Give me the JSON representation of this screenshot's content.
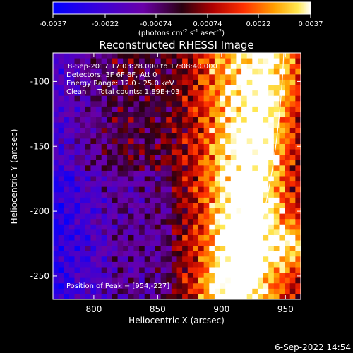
{
  "chart_data": {
    "type": "heatmap",
    "title": "Reconstructed RHESSI Image",
    "xlabel": "Heliocentric X (arcsec)",
    "ylabel": "Heliocentric Y (arcsec)",
    "x_range": [
      768,
      962
    ],
    "y_range": [
      -268,
      -78
    ],
    "x_ticks": [
      800,
      850,
      900,
      950
    ],
    "y_ticks": [
      -100,
      -150,
      -200,
      -250
    ],
    "colorbar": {
      "ticks": [
        "-0.0037",
        "-0.0022",
        "-0.00074",
        "0.00074",
        "0.0022",
        "0.0037"
      ],
      "range": [
        -0.0037,
        0.0037
      ],
      "units_label": "(photons cm",
      "units_exp1": "-2",
      "units_mid1": " s",
      "units_exp2": "-1",
      "units_mid2": " asec",
      "units_exp3": "-2",
      "units_end": ")"
    },
    "annotations": [
      "8-Sep-2017 17:03:28.000 to 17:08:40.000",
      "Detectors: 3F 6F 8F, Att 0",
      "Energy Range: 12.0 - 25.0 keV",
      "Clean     Total counts: 1.89E+03"
    ],
    "peak_label": "Position of Peak = [954,-227]",
    "peak_position": [
      954,
      -227
    ],
    "limb_present": true,
    "grid": false
  },
  "footer": {
    "timestamp": "6-Sep-2022 14:54"
  }
}
